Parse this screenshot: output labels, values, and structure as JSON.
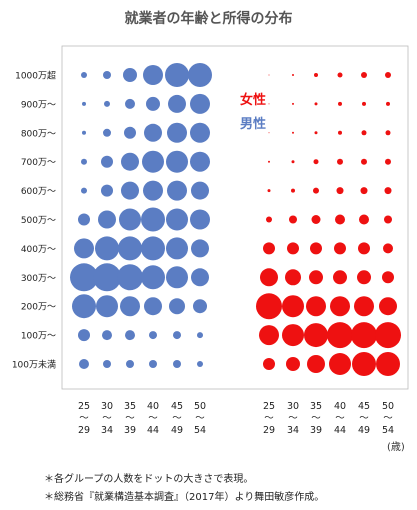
{
  "chart_data": {
    "type": "scatter",
    "title": "就業者の年齢と所得の分布",
    "y_categories": [
      "1000万超",
      "900万～",
      "800万～",
      "700万～",
      "600万～",
      "500万～",
      "400万～",
      "300万～",
      "200万～",
      "100万～",
      "100万未満"
    ],
    "x_groups": [
      {
        "start": "25",
        "end": "29"
      },
      {
        "start": "30",
        "end": "34"
      },
      {
        "start": "35",
        "end": "39"
      },
      {
        "start": "40",
        "end": "44"
      },
      {
        "start": "45",
        "end": "49"
      },
      {
        "start": "50",
        "end": "54"
      }
    ],
    "range_mark": "〜",
    "x_unit": "(歳)",
    "grid": false,
    "legend_position": "top-center",
    "series": [
      {
        "name": "男性",
        "color": "#5b7dc3",
        "dot_size": [
          [
            3,
            4,
            7,
            10,
            12,
            12
          ],
          [
            2,
            3,
            5,
            7,
            9,
            10
          ],
          [
            2,
            4,
            6,
            9,
            10,
            10
          ],
          [
            3,
            6,
            9,
            11,
            11,
            10
          ],
          [
            3,
            6,
            9,
            10,
            10,
            9
          ],
          [
            6,
            9,
            11,
            12,
            11,
            10
          ],
          [
            10,
            12,
            12,
            12,
            11,
            9
          ],
          [
            14,
            14,
            13,
            12,
            11,
            9
          ],
          [
            12,
            11,
            10,
            9,
            8,
            7
          ],
          [
            6,
            5,
            5,
            4,
            4,
            3
          ],
          [
            5,
            4,
            4,
            4,
            4,
            3
          ]
        ]
      },
      {
        "name": "女性",
        "color": "#ee1111",
        "dot_size": [
          [
            0.5,
            1,
            2,
            2.5,
            3,
            3
          ],
          [
            0.5,
            1,
            1.5,
            2,
            2,
            2
          ],
          [
            0.5,
            1,
            1.5,
            2,
            2.5,
            2.5
          ],
          [
            1,
            1.5,
            2.5,
            3,
            3,
            3
          ],
          [
            1.5,
            2,
            3,
            3.5,
            3.5,
            3.5
          ],
          [
            3,
            4,
            4.5,
            5,
            5,
            4
          ],
          [
            6,
            6,
            6,
            6,
            6,
            5
          ],
          [
            9,
            8,
            7,
            7,
            7,
            6
          ],
          [
            13,
            11,
            10,
            10,
            10,
            9
          ],
          [
            10,
            11,
            12,
            13,
            13,
            13
          ],
          [
            6,
            7,
            9,
            11,
            12,
            12
          ]
        ]
      }
    ]
  },
  "notes": [
    "＊各グループの人数をドットの大きさで表現。",
    "＊総務省『就業構造基本調査』（2017年）より舞田敏彦作成。"
  ]
}
